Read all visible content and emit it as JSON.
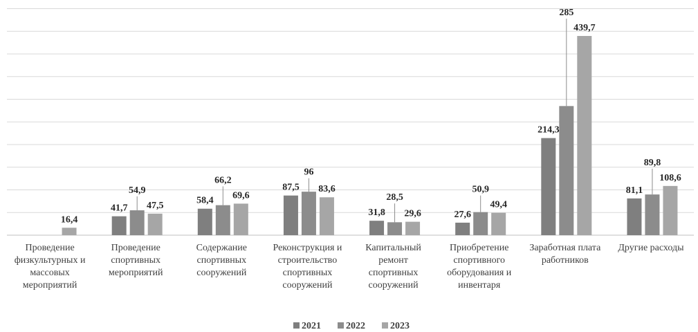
{
  "chart_data": {
    "type": "bar",
    "title": "",
    "xlabel": "",
    "ylabel": "",
    "ylim": [
      0,
      500
    ],
    "grid": true,
    "legend_position": "bottom",
    "categories": [
      [
        "Проведение",
        "физкультурных  и",
        "массовых",
        "мероприятий"
      ],
      [
        "Проведение",
        "спортивных",
        "мероприятий"
      ],
      [
        "Содержание",
        "спортивных",
        "сооружений"
      ],
      [
        "Реконструкция и",
        "строительство",
        "спортивных",
        "сооружений"
      ],
      [
        "Капитальный",
        "ремонт",
        "спортивных",
        "сооружений"
      ],
      [
        "Приобретение",
        "спортивного",
        "оборудования и",
        "инвентаря"
      ],
      [
        "Заработная плата",
        "работников"
      ],
      [
        "Другие расходы"
      ]
    ],
    "series": [
      {
        "name": "2021",
        "color": "#7f7f7f",
        "values": [
          null,
          41.7,
          58.4,
          87.5,
          31.8,
          27.6,
          214.3,
          81.1
        ],
        "labels": [
          "",
          "41,7",
          "58,4",
          "87,5",
          "31,8",
          "27,6",
          "214,3",
          "81,1"
        ]
      },
      {
        "name": "2022",
        "color": "#8c8c8c",
        "values": [
          null,
          54.9,
          66.2,
          96,
          28.5,
          50.9,
          285,
          89.8
        ],
        "labels": [
          "",
          "54,9",
          "66,2",
          "96",
          "28,5",
          "50,9",
          "285",
          "89,8"
        ]
      },
      {
        "name": "2023",
        "color": "#a6a6a6",
        "values": [
          16.4,
          47.5,
          69.6,
          83.6,
          29.6,
          49.4,
          439.7,
          108.6
        ],
        "labels": [
          "16,4",
          "47,5",
          "69,6",
          "83,6",
          "29,6",
          "49,4",
          "439,7",
          "108,6"
        ]
      }
    ]
  }
}
